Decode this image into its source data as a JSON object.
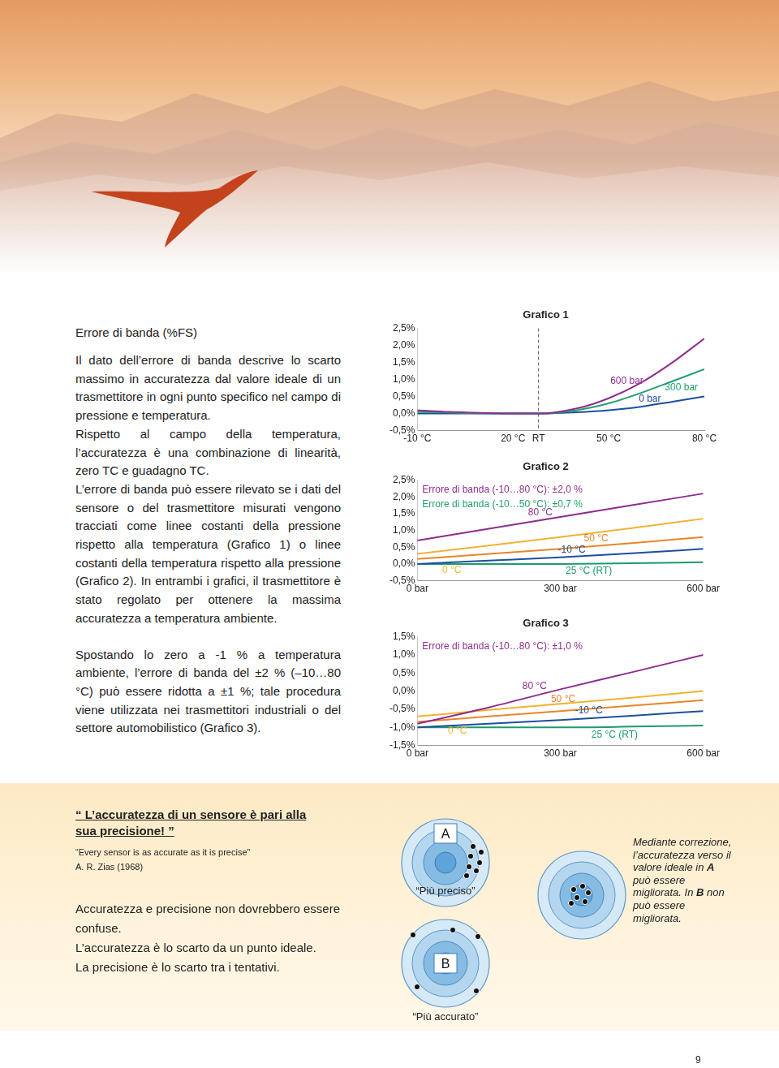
{
  "header": {
    "title": "Errore di banda (%FS)"
  },
  "text": {
    "blocks": [
      [
        "Il dato dell’errore di banda descrive lo scarto massimo in accuratezza dal valore ideale di un trasmettitore in ogni punto specifico nel campo di pressione e temperatura.",
        "Rispetto al campo della temperatura, l’accuratezza è una combinazione di linearità, zero TC e guadagno TC.",
        "L’errore di banda può essere rilevato se i dati del sensore o del trasmettitore misurati vengono tracciati come linee costanti della pressione rispetto alla temperatura (Grafico 1) o linee costanti della temperatura rispetto alla pressione (Grafico 2). In entrambi i grafici, il trasmettitore è stato regolato per ottenere la massima accuratezza a temperatura ambiente."
      ],
      [
        "Spostando lo zero a -1 % a temperatura ambiente, l’errore di banda del ±2 % (–10…80 °C) può essere ridotta a ±1 %; tale procedura viene utilizzata nei trasmettitori industriali o del settore automobilistico (Grafico 3)."
      ]
    ]
  },
  "chart_data": [
    {
      "type": "line",
      "title": "Grafico 1",
      "x": [
        -10,
        0,
        10,
        20,
        28,
        40,
        50,
        60,
        70,
        80
      ],
      "xlim": [
        -10,
        80
      ],
      "xticks": [
        {
          "value": -10,
          "label": "-10 °C"
        },
        {
          "value": 20,
          "label": "20 °C"
        },
        {
          "value": 28,
          "label": "RT"
        },
        {
          "value": 50,
          "label": "50 °C"
        },
        {
          "value": 80,
          "label": "80 °C"
        }
      ],
      "ylim": [
        -0.5,
        2.5
      ],
      "yticks": [
        {
          "value": -0.5,
          "label": "-0,5%"
        },
        {
          "value": 0,
          "label": "0,0%"
        },
        {
          "value": 0.5,
          "label": "0,5%"
        },
        {
          "value": 1,
          "label": "1,0%"
        },
        {
          "value": 1.5,
          "label": "1,5%"
        },
        {
          "value": 2,
          "label": "2,0%"
        },
        {
          "value": 2.5,
          "label": "2,5%"
        }
      ],
      "grid": false,
      "vlines": [
        28
      ],
      "series": [
        {
          "name": "600 bar",
          "color": "#8e2d8f",
          "values": [
            0.1,
            0.05,
            0.02,
            0.0,
            0.0,
            0.15,
            0.45,
            0.9,
            1.5,
            2.2
          ]
        },
        {
          "name": "300 bar",
          "color": "#22a06b",
          "values": [
            0.05,
            0.03,
            0.01,
            0.0,
            0.0,
            0.1,
            0.3,
            0.6,
            0.95,
            1.3
          ]
        },
        {
          "name": "0 bar",
          "color": "#1d4f9e",
          "values": [
            0.0,
            0.0,
            0.0,
            0.0,
            0.0,
            0.04,
            0.1,
            0.2,
            0.35,
            0.5
          ]
        }
      ]
    },
    {
      "type": "line",
      "title": "Grafico 2",
      "x": [
        0,
        150,
        300,
        450,
        600
      ],
      "xlim": [
        0,
        600
      ],
      "xticks": [
        {
          "value": 0,
          "label": "0 bar"
        },
        {
          "value": 300,
          "label": "300 bar"
        },
        {
          "value": 600,
          "label": "600 bar"
        }
      ],
      "ylim": [
        -0.5,
        2.5
      ],
      "yticks": [
        {
          "value": -0.5,
          "label": "-0,5%"
        },
        {
          "value": 0,
          "label": "0,0%"
        },
        {
          "value": 0.5,
          "label": "0,5%"
        },
        {
          "value": 1,
          "label": "1,0%"
        },
        {
          "value": 1.5,
          "label": "1,5%"
        },
        {
          "value": 2,
          "label": "2,0%"
        },
        {
          "value": 2.5,
          "label": "2,5%"
        }
      ],
      "grid": false,
      "annotations": [
        {
          "text": "Errore di banda (-10…80 °C): ±2,0 %",
          "color": "#8e2d8f"
        },
        {
          "text": "Errore di banda (-10…50 °C): ±0,7 %",
          "color": "#22a06b"
        }
      ],
      "series": [
        {
          "name": "80 °C",
          "color": "#8e2d8f",
          "values": [
            0.7,
            1.05,
            1.4,
            1.75,
            2.1
          ]
        },
        {
          "name": "0 °C",
          "color": "#f2b233",
          "values": [
            0.3,
            0.55,
            0.8,
            1.07,
            1.35
          ]
        },
        {
          "name": "50 °C",
          "color": "#e8862a",
          "values": [
            0.15,
            0.3,
            0.45,
            0.62,
            0.8
          ]
        },
        {
          "name": "-10 °C",
          "color": "#1d4f9e",
          "values": [
            0.0,
            0.1,
            0.2,
            0.32,
            0.45
          ]
        },
        {
          "name": "25 °C (RT)",
          "color": "#1e9a6b",
          "values": [
            0.0,
            0.0,
            0.0,
            0.02,
            0.05
          ]
        }
      ]
    },
    {
      "type": "line",
      "title": "Grafico 3",
      "x": [
        0,
        150,
        300,
        450,
        600
      ],
      "xlim": [
        0,
        600
      ],
      "xticks": [
        {
          "value": 0,
          "label": "0 bar"
        },
        {
          "value": 300,
          "label": "300 bar"
        },
        {
          "value": 600,
          "label": "600 bar"
        }
      ],
      "ylim": [
        -1.5,
        1.5
      ],
      "yticks": [
        {
          "value": -1.5,
          "label": "-1,5%"
        },
        {
          "value": -1,
          "label": "-1,0%"
        },
        {
          "value": -0.5,
          "label": "-0,5%"
        },
        {
          "value": 0,
          "label": "0,0%"
        },
        {
          "value": 0.5,
          "label": "0,5%"
        },
        {
          "value": 1,
          "label": "1,0%"
        },
        {
          "value": 1.5,
          "label": "1,5%"
        }
      ],
      "grid": false,
      "annotations": [
        {
          "text": "Errore di banda (-10…80 °C): ±1,0 %",
          "color": "#8e2d8f"
        }
      ],
      "series": [
        {
          "name": "80 °C",
          "color": "#8e2d8f",
          "values": [
            -0.9,
            -0.45,
            0.05,
            0.52,
            1.0
          ]
        },
        {
          "name": "0 °C",
          "color": "#f2b233",
          "values": [
            -0.7,
            -0.52,
            -0.35,
            -0.18,
            0.0
          ]
        },
        {
          "name": "50 °C",
          "color": "#e8862a",
          "values": [
            -0.85,
            -0.7,
            -0.55,
            -0.4,
            -0.25
          ]
        },
        {
          "name": "-10 °C",
          "color": "#1d4f9e",
          "values": [
            -1.0,
            -0.9,
            -0.8,
            -0.68,
            -0.55
          ]
        },
        {
          "name": "25 °C (RT)",
          "color": "#1e9a6b",
          "values": [
            -1.0,
            -1.0,
            -1.0,
            -0.98,
            -0.95
          ]
        }
      ]
    }
  ],
  "box": {
    "quote": "“ L’accuratezza di un sensore è pari alla sua precisione! ”",
    "quote_en": "“Every sensor is as accurate as it is precise”",
    "author": "A. R. Zias (1968)",
    "lines": [
      "Accuratezza e precisione non dovrebbero essere confuse.",
      "L’accuratezza è lo scarto da un punto ideale.",
      "La precisione è lo scarto tra i tentativi."
    ]
  },
  "targets": {
    "a": "A",
    "b": "B",
    "label_a": "“Più preciso”",
    "label_b": "“Più accurato”",
    "note": [
      {
        "text": "Mediante correzione, l’accuratezza verso il valore ideale in "
      },
      {
        "text": "A",
        "bold": true
      },
      {
        "text": " può essere migliorata. In "
      },
      {
        "text": "B",
        "bold": true
      },
      {
        "text": " non può essere migliorata."
      }
    ]
  },
  "page_number": "9"
}
